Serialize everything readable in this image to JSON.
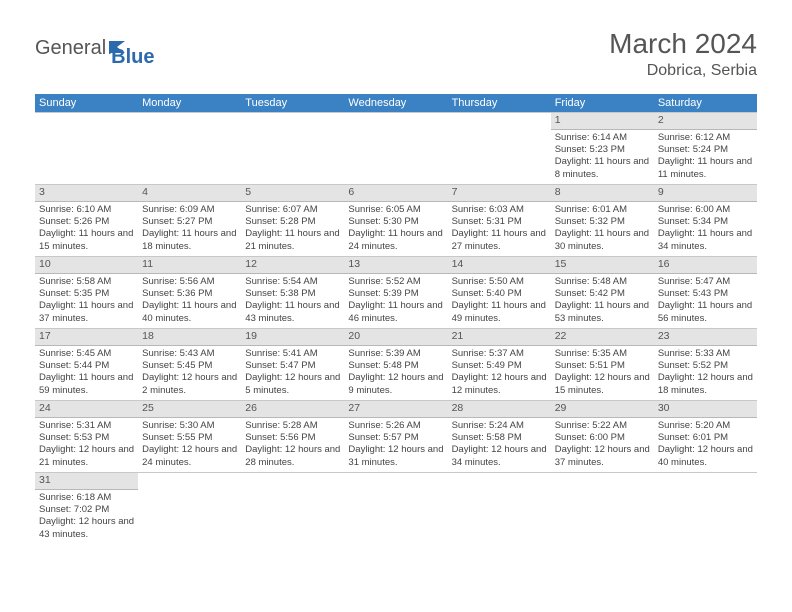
{
  "logo": {
    "text_a": "General",
    "text_b": "Blue"
  },
  "header": {
    "title": "March 2024",
    "location": "Dobrica, Serbia"
  },
  "weekdays": [
    "Sunday",
    "Monday",
    "Tuesday",
    "Wednesday",
    "Thursday",
    "Friday",
    "Saturday"
  ],
  "colors": {
    "header_bg": "#3b82c4",
    "header_fg": "#ffffff",
    "daynum_bg": "#e4e4e4",
    "text": "#444444",
    "title": "#555555",
    "border": "#c8c8c8"
  },
  "typography": {
    "title_fontsize": 28,
    "location_fontsize": 16,
    "logo_fontsize": 20,
    "weekday_fontsize": 11,
    "daynum_fontsize": 10.5,
    "cell_fontsize": 9.5
  },
  "labels": {
    "sunrise": "Sunrise:",
    "sunset": "Sunset:",
    "daylight": "Daylight:"
  },
  "weeks": [
    [
      null,
      null,
      null,
      null,
      null,
      {
        "n": "1",
        "r": "6:14 AM",
        "s": "5:23 PM",
        "d": "11 hours and 8 minutes."
      },
      {
        "n": "2",
        "r": "6:12 AM",
        "s": "5:24 PM",
        "d": "11 hours and 11 minutes."
      }
    ],
    [
      {
        "n": "3",
        "r": "6:10 AM",
        "s": "5:26 PM",
        "d": "11 hours and 15 minutes."
      },
      {
        "n": "4",
        "r": "6:09 AM",
        "s": "5:27 PM",
        "d": "11 hours and 18 minutes."
      },
      {
        "n": "5",
        "r": "6:07 AM",
        "s": "5:28 PM",
        "d": "11 hours and 21 minutes."
      },
      {
        "n": "6",
        "r": "6:05 AM",
        "s": "5:30 PM",
        "d": "11 hours and 24 minutes."
      },
      {
        "n": "7",
        "r": "6:03 AM",
        "s": "5:31 PM",
        "d": "11 hours and 27 minutes."
      },
      {
        "n": "8",
        "r": "6:01 AM",
        "s": "5:32 PM",
        "d": "11 hours and 30 minutes."
      },
      {
        "n": "9",
        "r": "6:00 AM",
        "s": "5:34 PM",
        "d": "11 hours and 34 minutes."
      }
    ],
    [
      {
        "n": "10",
        "r": "5:58 AM",
        "s": "5:35 PM",
        "d": "11 hours and 37 minutes."
      },
      {
        "n": "11",
        "r": "5:56 AM",
        "s": "5:36 PM",
        "d": "11 hours and 40 minutes."
      },
      {
        "n": "12",
        "r": "5:54 AM",
        "s": "5:38 PM",
        "d": "11 hours and 43 minutes."
      },
      {
        "n": "13",
        "r": "5:52 AM",
        "s": "5:39 PM",
        "d": "11 hours and 46 minutes."
      },
      {
        "n": "14",
        "r": "5:50 AM",
        "s": "5:40 PM",
        "d": "11 hours and 49 minutes."
      },
      {
        "n": "15",
        "r": "5:48 AM",
        "s": "5:42 PM",
        "d": "11 hours and 53 minutes."
      },
      {
        "n": "16",
        "r": "5:47 AM",
        "s": "5:43 PM",
        "d": "11 hours and 56 minutes."
      }
    ],
    [
      {
        "n": "17",
        "r": "5:45 AM",
        "s": "5:44 PM",
        "d": "11 hours and 59 minutes."
      },
      {
        "n": "18",
        "r": "5:43 AM",
        "s": "5:45 PM",
        "d": "12 hours and 2 minutes."
      },
      {
        "n": "19",
        "r": "5:41 AM",
        "s": "5:47 PM",
        "d": "12 hours and 5 minutes."
      },
      {
        "n": "20",
        "r": "5:39 AM",
        "s": "5:48 PM",
        "d": "12 hours and 9 minutes."
      },
      {
        "n": "21",
        "r": "5:37 AM",
        "s": "5:49 PM",
        "d": "12 hours and 12 minutes."
      },
      {
        "n": "22",
        "r": "5:35 AM",
        "s": "5:51 PM",
        "d": "12 hours and 15 minutes."
      },
      {
        "n": "23",
        "r": "5:33 AM",
        "s": "5:52 PM",
        "d": "12 hours and 18 minutes."
      }
    ],
    [
      {
        "n": "24",
        "r": "5:31 AM",
        "s": "5:53 PM",
        "d": "12 hours and 21 minutes."
      },
      {
        "n": "25",
        "r": "5:30 AM",
        "s": "5:55 PM",
        "d": "12 hours and 24 minutes."
      },
      {
        "n": "26",
        "r": "5:28 AM",
        "s": "5:56 PM",
        "d": "12 hours and 28 minutes."
      },
      {
        "n": "27",
        "r": "5:26 AM",
        "s": "5:57 PM",
        "d": "12 hours and 31 minutes."
      },
      {
        "n": "28",
        "r": "5:24 AM",
        "s": "5:58 PM",
        "d": "12 hours and 34 minutes."
      },
      {
        "n": "29",
        "r": "5:22 AM",
        "s": "6:00 PM",
        "d": "12 hours and 37 minutes."
      },
      {
        "n": "30",
        "r": "5:20 AM",
        "s": "6:01 PM",
        "d": "12 hours and 40 minutes."
      }
    ],
    [
      {
        "n": "31",
        "r": "6:18 AM",
        "s": "7:02 PM",
        "d": "12 hours and 43 minutes."
      },
      null,
      null,
      null,
      null,
      null,
      null
    ]
  ]
}
